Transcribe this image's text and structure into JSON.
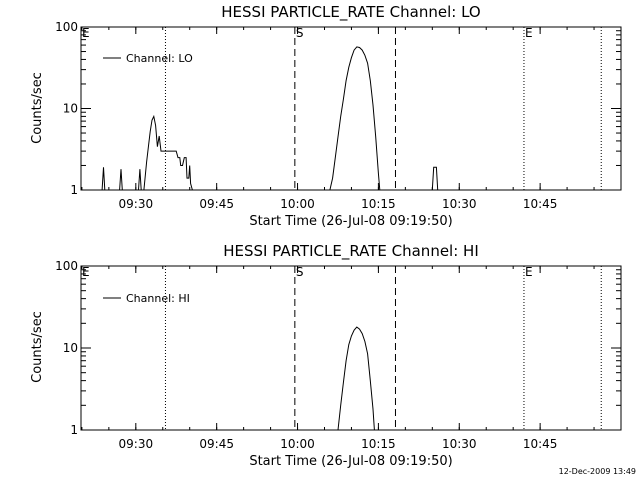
{
  "chart_data": [
    {
      "type": "line",
      "title": "HESSI PARTICLE_RATE Channel: LO",
      "xlabel": "Start Time (26-Jul-08 09:19:50)",
      "ylabel": "Counts/sec",
      "y_scale": "log",
      "ylim": [
        1,
        100
      ],
      "xlim": [
        "09:19:50",
        "11:00:00"
      ],
      "x_tick_labels": [
        "09:30",
        "09:45",
        "10:00",
        "10:15",
        "10:30",
        "10:45"
      ],
      "y_tick_labels": [
        "1",
        "10",
        "100"
      ],
      "legend": {
        "placement": "top-left",
        "entries": [
          "Channel: LO"
        ]
      },
      "markers": [
        {
          "label": "E",
          "time": "09:19:50",
          "style": "label"
        },
        {
          "label": "",
          "time": "09:35:30",
          "style": "dotted"
        },
        {
          "label": "S",
          "time": "09:59:30",
          "style": "dashed"
        },
        {
          "label": "",
          "time": "10:18:10",
          "style": "dashed"
        },
        {
          "label": "E",
          "time": "10:42:00",
          "style": "dotted"
        },
        {
          "label": "",
          "time": "10:56:20",
          "style": "dotted"
        }
      ],
      "series": [
        {
          "name": "Channel: LO",
          "segments": [
            [
              [
                "09:23:45",
                1
              ],
              [
                "09:24:00",
                1.9
              ],
              [
                "09:24:15",
                1
              ]
            ],
            [
              [
                "09:27:00",
                1
              ],
              [
                "09:27:15",
                1.8
              ],
              [
                "09:27:30",
                1
              ]
            ],
            [
              [
                "09:30:30",
                1
              ],
              [
                "09:30:45",
                1.8
              ],
              [
                "09:31:00",
                1
              ]
            ],
            [
              [
                "09:31:30",
                1
              ],
              [
                "09:32:00",
                2.2
              ],
              [
                "09:32:20",
                3.4
              ],
              [
                "09:32:40",
                5.2
              ],
              [
                "09:33:00",
                7.2
              ],
              [
                "09:33:20",
                8.0
              ],
              [
                "09:33:40",
                6.2
              ],
              [
                "09:34:00",
                3.4
              ],
              [
                "09:34:20",
                4.6
              ],
              [
                "09:34:40",
                3.0
              ],
              [
                "09:35:00",
                3.0
              ],
              [
                "09:36:30",
                3.0
              ],
              [
                "09:37:30",
                3.0
              ],
              [
                "09:37:50",
                2.5
              ],
              [
                "09:38:10",
                2.5
              ],
              [
                "09:38:20",
                2.0
              ],
              [
                "09:38:40",
                2.0
              ],
              [
                "09:39:00",
                2.5
              ],
              [
                "09:39:20",
                2.5
              ],
              [
                "09:39:30",
                1.4
              ],
              [
                "09:39:50",
                1.4
              ],
              [
                "09:40:00",
                2.0
              ],
              [
                "09:40:10",
                1.2
              ],
              [
                "09:40:30",
                1.0
              ]
            ],
            [
              [
                "10:06:00",
                1
              ],
              [
                "10:06:30",
                1.4
              ],
              [
                "10:07:00",
                2.5
              ],
              [
                "10:07:30",
                4.5
              ],
              [
                "10:08:00",
                8.0
              ],
              [
                "10:08:30",
                13
              ],
              [
                "10:09:00",
                22
              ],
              [
                "10:09:30",
                32
              ],
              [
                "10:10:00",
                42
              ],
              [
                "10:10:30",
                52
              ],
              [
                "10:11:00",
                57
              ],
              [
                "10:11:30",
                56
              ],
              [
                "10:12:00",
                52
              ],
              [
                "10:12:30",
                45
              ],
              [
                "10:13:00",
                36
              ],
              [
                "10:13:30",
                22
              ],
              [
                "10:14:00",
                11
              ],
              [
                "10:14:30",
                4.5
              ],
              [
                "10:15:00",
                1.6
              ],
              [
                "10:15:15",
                1.0
              ]
            ],
            [
              [
                "10:25:00",
                1
              ],
              [
                "10:25:15",
                1.9
              ],
              [
                "10:25:45",
                1.9
              ],
              [
                "10:26:00",
                1
              ]
            ]
          ]
        }
      ],
      "grid": false
    },
    {
      "type": "line",
      "title": "HESSI PARTICLE_RATE Channel: HI",
      "xlabel": "Start Time (26-Jul-08 09:19:50)",
      "ylabel": "Counts/sec",
      "y_scale": "log",
      "ylim": [
        1,
        100
      ],
      "xlim": [
        "09:19:50",
        "11:00:00"
      ],
      "x_tick_labels": [
        "09:30",
        "09:45",
        "10:00",
        "10:15",
        "10:30",
        "10:45"
      ],
      "y_tick_labels": [
        "1",
        "10",
        "100"
      ],
      "legend": {
        "placement": "top-left",
        "entries": [
          "Channel: HI"
        ]
      },
      "markers": [
        {
          "label": "E",
          "time": "09:19:50",
          "style": "label"
        },
        {
          "label": "",
          "time": "09:35:30",
          "style": "dotted"
        },
        {
          "label": "S",
          "time": "09:59:30",
          "style": "dashed"
        },
        {
          "label": "",
          "time": "10:18:10",
          "style": "dashed"
        },
        {
          "label": "E",
          "time": "10:42:00",
          "style": "dotted"
        },
        {
          "label": "",
          "time": "10:56:20",
          "style": "dotted"
        }
      ],
      "series": [
        {
          "name": "Channel: HI",
          "segments": [
            [
              [
                "10:07:30",
                1
              ],
              [
                "10:08:00",
                2.0
              ],
              [
                "10:08:30",
                3.8
              ],
              [
                "10:09:00",
                7.0
              ],
              [
                "10:09:30",
                11
              ],
              [
                "10:10:00",
                14
              ],
              [
                "10:10:30",
                16.5
              ],
              [
                "10:11:00",
                18
              ],
              [
                "10:11:30",
                17
              ],
              [
                "10:12:00",
                15
              ],
              [
                "10:12:30",
                12
              ],
              [
                "10:13:00",
                8.5
              ],
              [
                "10:13:30",
                4.0
              ],
              [
                "10:14:00",
                1.8
              ],
              [
                "10:14:15",
                1.0
              ]
            ]
          ]
        }
      ],
      "grid": false
    }
  ],
  "footer": {
    "timestamp": "12-Dec-2009 13:49"
  },
  "colors": {
    "background": "#ffffff",
    "foreground": "#000000"
  }
}
